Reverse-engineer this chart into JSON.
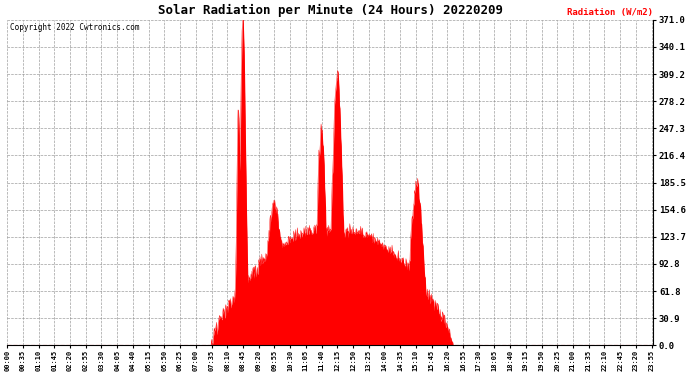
{
  "title": "Solar Radiation per Minute (24 Hours) 20220209",
  "ylabel": "Radiation (W/m2)",
  "copyright_text": "Copyright 2022 Cwtronics.com",
  "fill_color": "#ff0000",
  "line_color": "#ff0000",
  "background_color": "#ffffff",
  "yticks": [
    0.0,
    30.9,
    61.8,
    92.8,
    123.7,
    154.6,
    185.5,
    216.4,
    247.3,
    278.2,
    309.2,
    340.1,
    371.0
  ],
  "ymax": 371.0,
  "ymin": 0.0,
  "total_minutes": 1440,
  "dpi": 100,
  "figsize": [
    6.9,
    3.75
  ]
}
